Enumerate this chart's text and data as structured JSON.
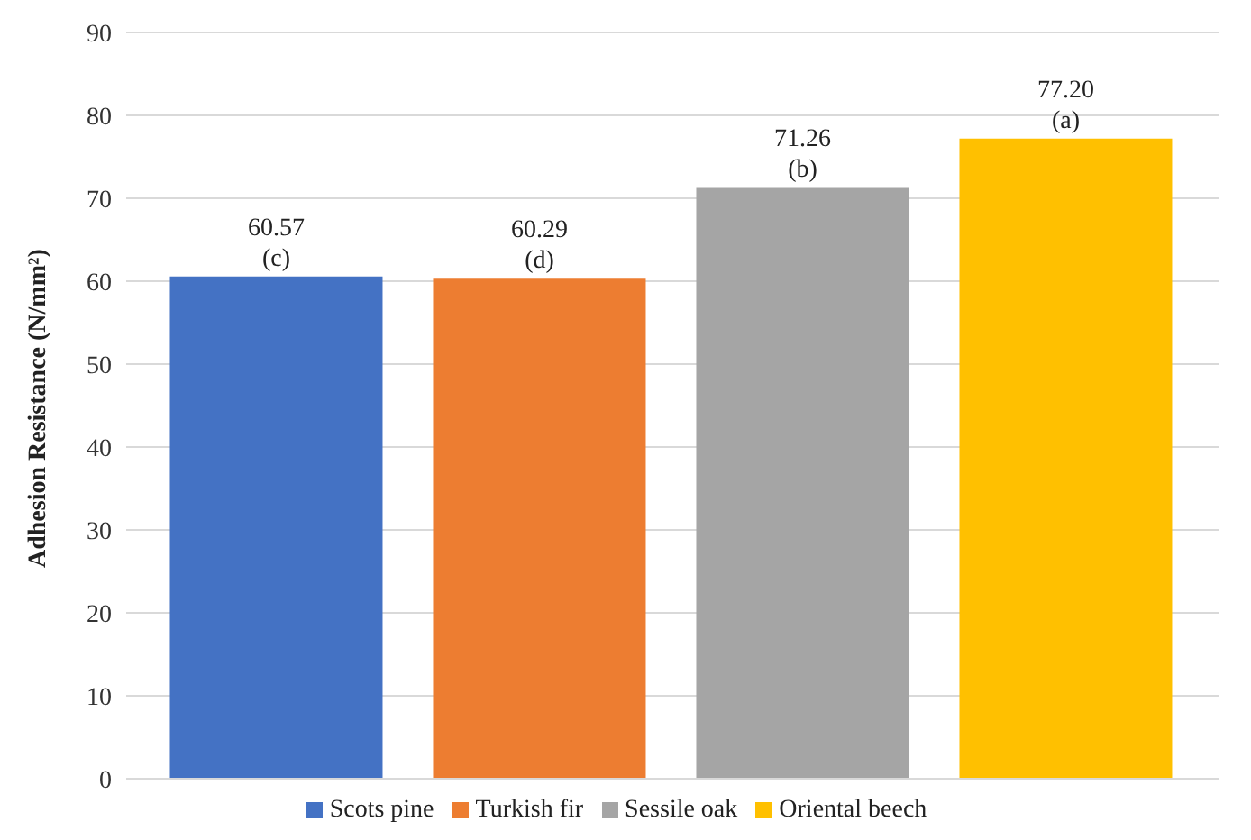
{
  "chart_data": {
    "type": "bar",
    "ylabel": "Adhesion Resistance (N/mm²)",
    "categories": [
      null
    ],
    "series": [
      {
        "name": "Scots pine",
        "color": "#4472c4",
        "values": [
          60.57
        ],
        "value_labels": [
          "60.57\n(c)"
        ]
      },
      {
        "name": "Turkish fir",
        "color": "#ed7d31",
        "values": [
          60.29
        ],
        "value_labels": [
          "60.29\n(d)"
        ]
      },
      {
        "name": "Sessile oak",
        "color": "#a5a5a5",
        "values": [
          71.26
        ],
        "value_labels": [
          "71.26\n(b)"
        ]
      },
      {
        "name": "Oriental beech",
        "color": "#ffc000",
        "values": [
          77.2
        ],
        "value_labels": [
          "77.20\n(a)"
        ]
      }
    ],
    "ylim": [
      0,
      90
    ],
    "yticks": [
      0,
      10,
      20,
      30,
      40,
      50,
      60,
      70,
      80,
      90
    ],
    "grid": "y",
    "legend": "bottom"
  }
}
